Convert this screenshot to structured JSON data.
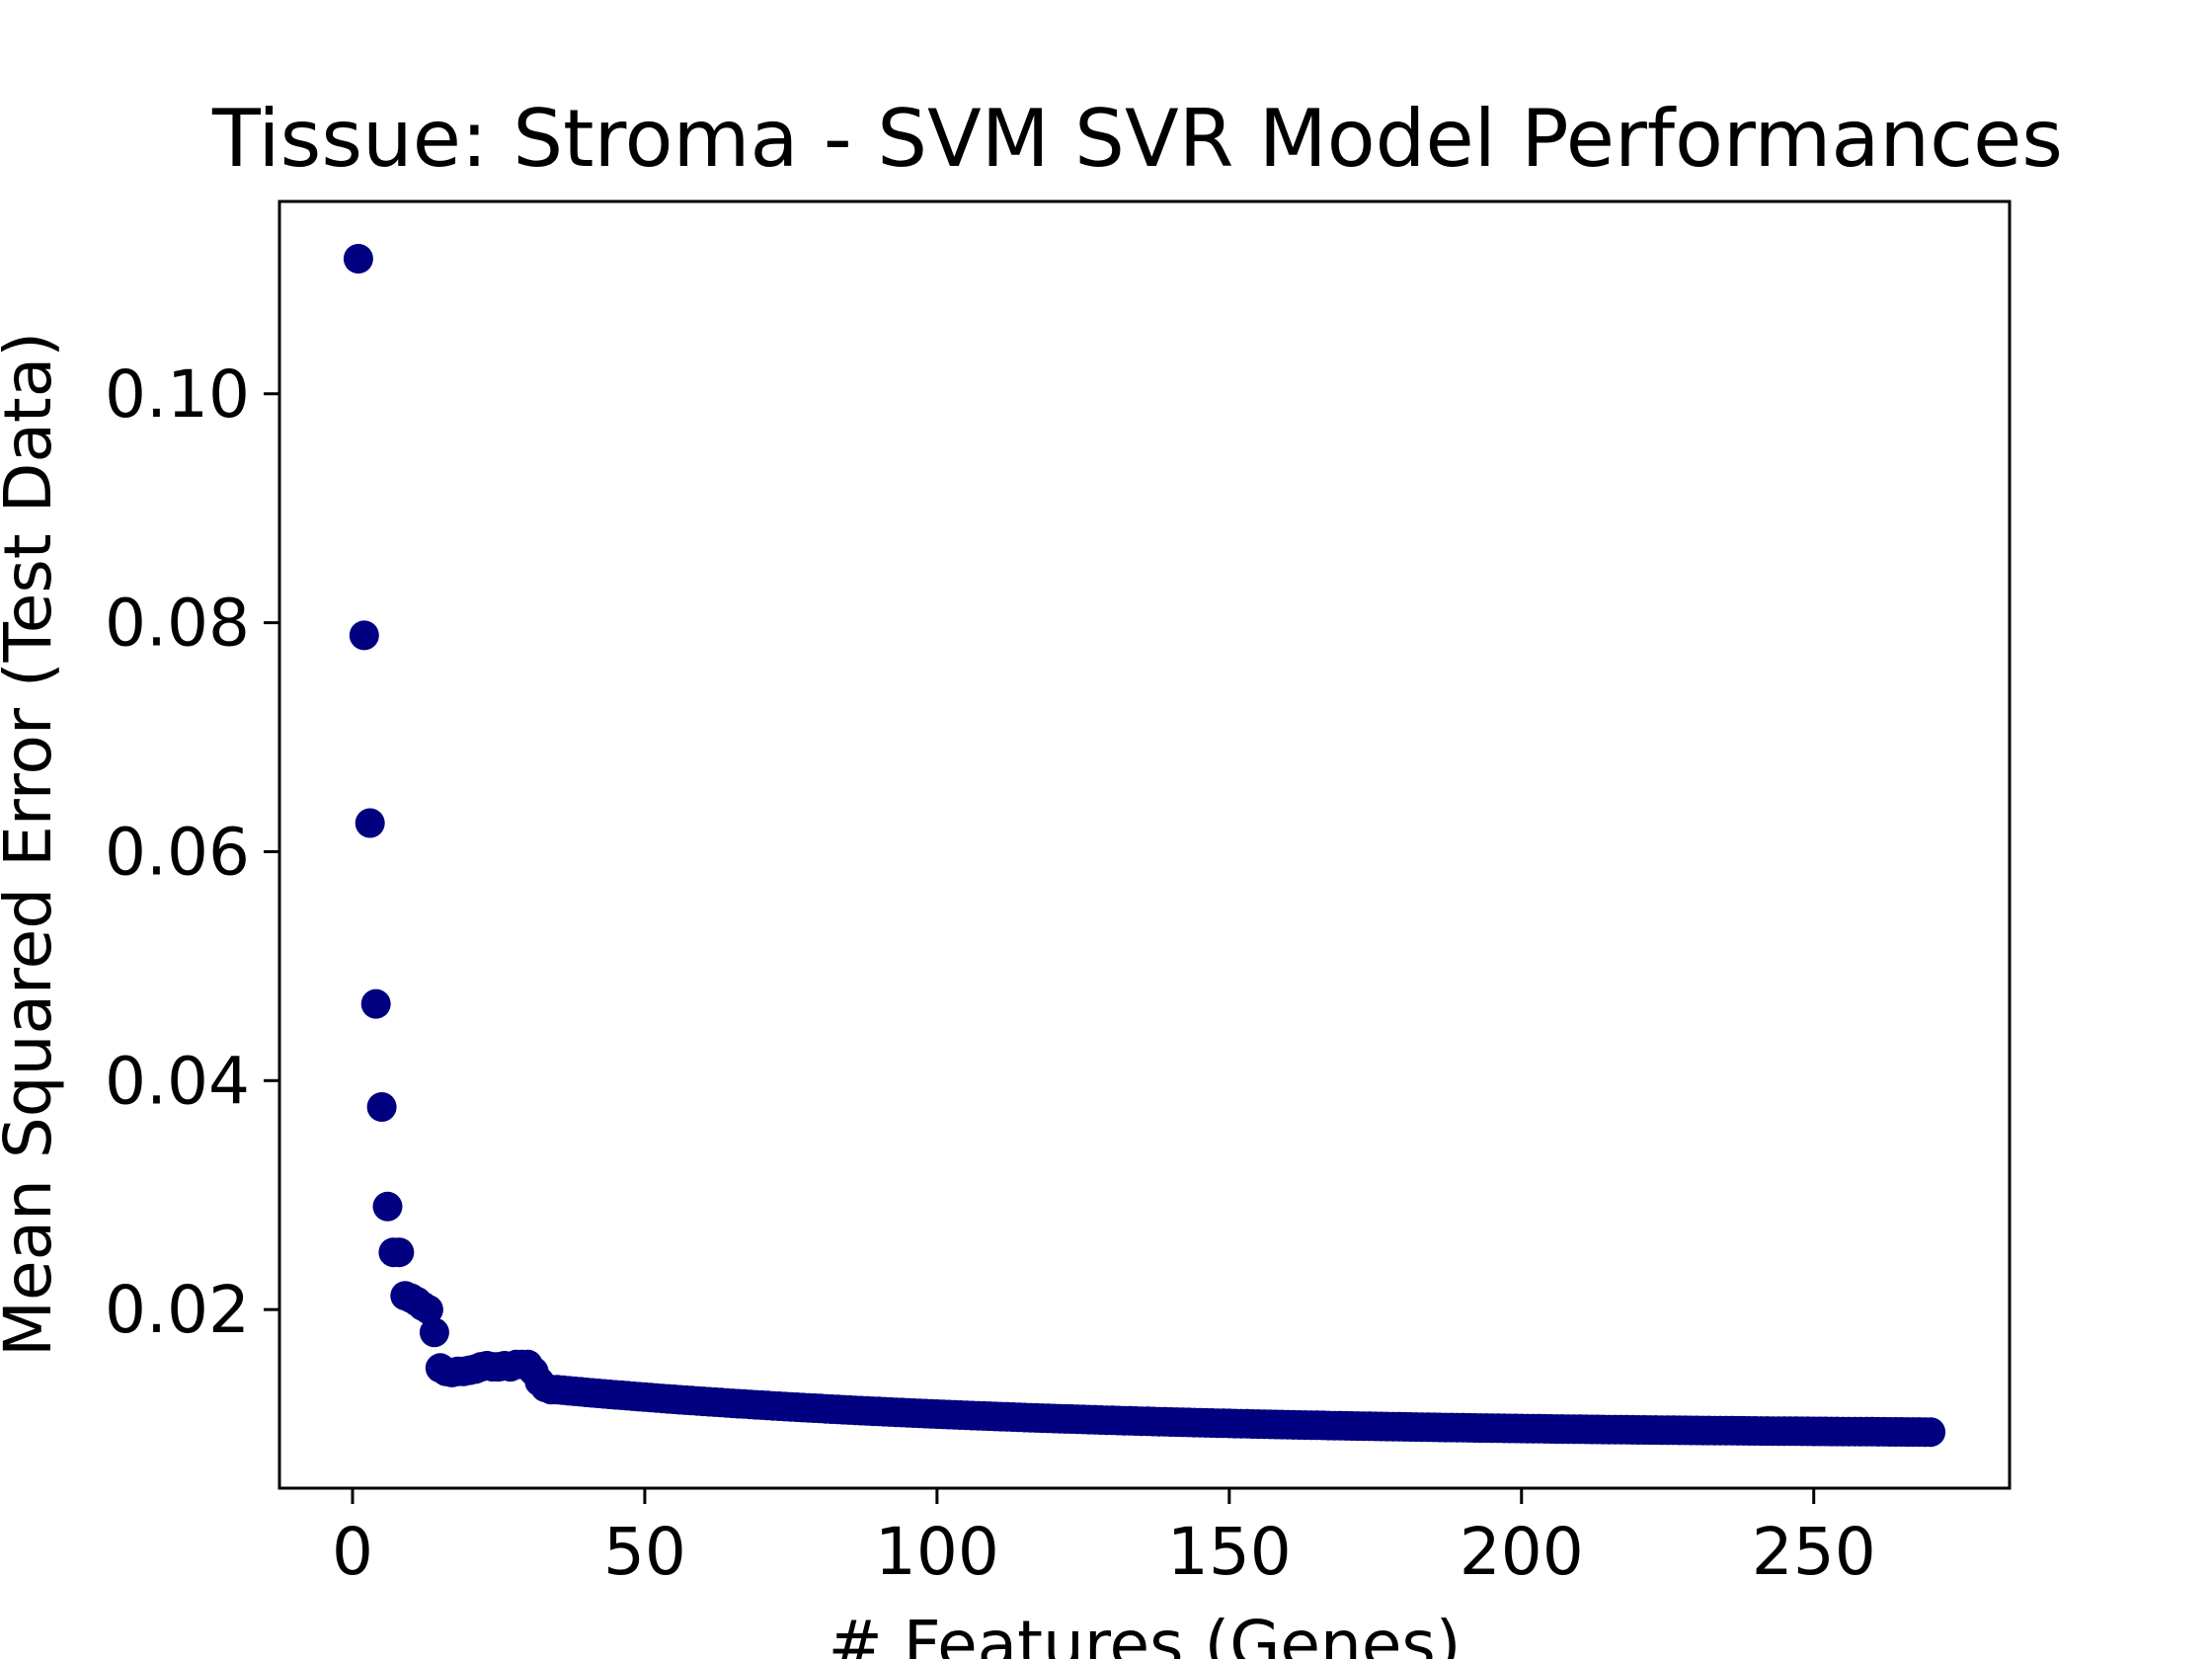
{
  "chart_data": {
    "type": "scatter",
    "title": "Tissue: Stroma - SVM SVR Model Performances",
    "xlabel": "# Features (Genes)",
    "ylabel": "Mean Squared Error (Test Data)",
    "xlim": [
      -12.5,
      283.5
    ],
    "ylim": [
      0.0044,
      0.1168
    ],
    "xticks": [
      0,
      50,
      100,
      150,
      200,
      250
    ],
    "yticks": [
      0.02,
      0.04,
      0.06,
      0.08,
      0.1
    ],
    "ytick_labels": [
      "0.02",
      "0.04",
      "0.06",
      "0.08",
      "0.10"
    ],
    "grid": false,
    "legend": "none",
    "marker_color": "#000080",
    "points": {
      "head": [
        [
          1,
          0.1118
        ],
        [
          2,
          0.0789
        ],
        [
          3,
          0.0625
        ],
        [
          4,
          0.0467
        ],
        [
          5,
          0.0377
        ],
        [
          6,
          0.029
        ],
        [
          7,
          0.025
        ],
        [
          8,
          0.025
        ],
        [
          9,
          0.0212
        ],
        [
          10,
          0.021
        ],
        [
          11,
          0.0207
        ],
        [
          12,
          0.0203
        ],
        [
          13,
          0.02
        ],
        [
          14,
          0.018
        ],
        [
          15,
          0.0149
        ],
        [
          16,
          0.0146
        ],
        [
          17,
          0.0145
        ],
        [
          18,
          0.0146
        ],
        [
          19,
          0.0146
        ],
        [
          20,
          0.0147
        ],
        [
          21,
          0.0148
        ],
        [
          22,
          0.015
        ],
        [
          23,
          0.0151
        ],
        [
          24,
          0.015
        ],
        [
          25,
          0.015
        ],
        [
          26,
          0.0151
        ],
        [
          27,
          0.015
        ],
        [
          28,
          0.0152
        ],
        [
          29,
          0.0152
        ],
        [
          30,
          0.0152
        ],
        [
          31,
          0.0146
        ],
        [
          32,
          0.0137
        ],
        [
          33,
          0.0132
        ],
        [
          34,
          0.013
        ]
      ],
      "tail": {
        "x_start": 35,
        "x_end": 270,
        "y_start": 0.013,
        "y_end": 0.0093,
        "decay": 0.012
      }
    }
  }
}
